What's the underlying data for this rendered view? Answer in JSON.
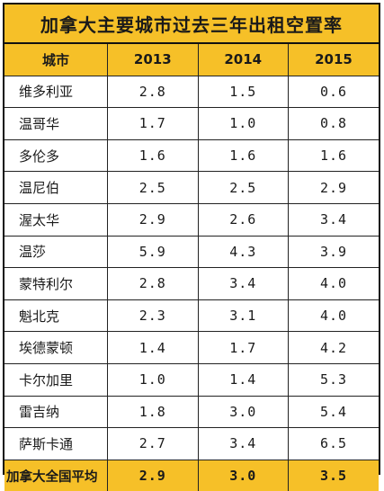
{
  "title": "加拿大主要城市过去三年出租空置率",
  "header": [
    "城市",
    "2013",
    "2014",
    "2015"
  ],
  "rows": [
    {
      "city": "维多利亚",
      "y2013": "2.8",
      "y2014": "1.5",
      "y2015": "0.6"
    },
    {
      "city": "温哥华",
      "y2013": "1.7",
      "y2014": "1.0",
      "y2015": "0.8"
    },
    {
      "city": "多伦多",
      "y2013": "1.6",
      "y2014": "1.6",
      "y2015": "1.6"
    },
    {
      "city": "温尼伯",
      "y2013": "2.5",
      "y2014": "2.5",
      "y2015": "2.9"
    },
    {
      "city": "渥太华",
      "y2013": "2.9",
      "y2014": "2.6",
      "y2015": "3.4"
    },
    {
      "city": "温莎",
      "y2013": "5.9",
      "y2014": "4.3",
      "y2015": "3.9"
    },
    {
      "city": "蒙特利尔",
      "y2013": "2.8",
      "y2014": "3.4",
      "y2015": "4.0"
    },
    {
      "city": "魁北克",
      "y2013": "2.3",
      "y2014": "3.1",
      "y2015": "4.0"
    },
    {
      "city": "埃德蒙顿",
      "y2013": "1.4",
      "y2014": "1.7",
      "y2015": "4.2"
    },
    {
      "city": "卡尔加里",
      "y2013": "1.0",
      "y2014": "1.4",
      "y2015": "5.3"
    },
    {
      "city": "雷吉纳",
      "y2013": "1.8",
      "y2014": "3.0",
      "y2015": "5.4"
    },
    {
      "city": "萨斯卡通",
      "y2013": "2.7",
      "y2014": "3.4",
      "y2015": "6.5"
    }
  ],
  "average": {
    "city": "加拿大全国平均",
    "y2013": "2.9",
    "y2014": "3.0",
    "y2015": "3.5"
  },
  "colors": {
    "header_bg": "#f6c028",
    "border": "#222222",
    "text": "#1a1a1a"
  }
}
